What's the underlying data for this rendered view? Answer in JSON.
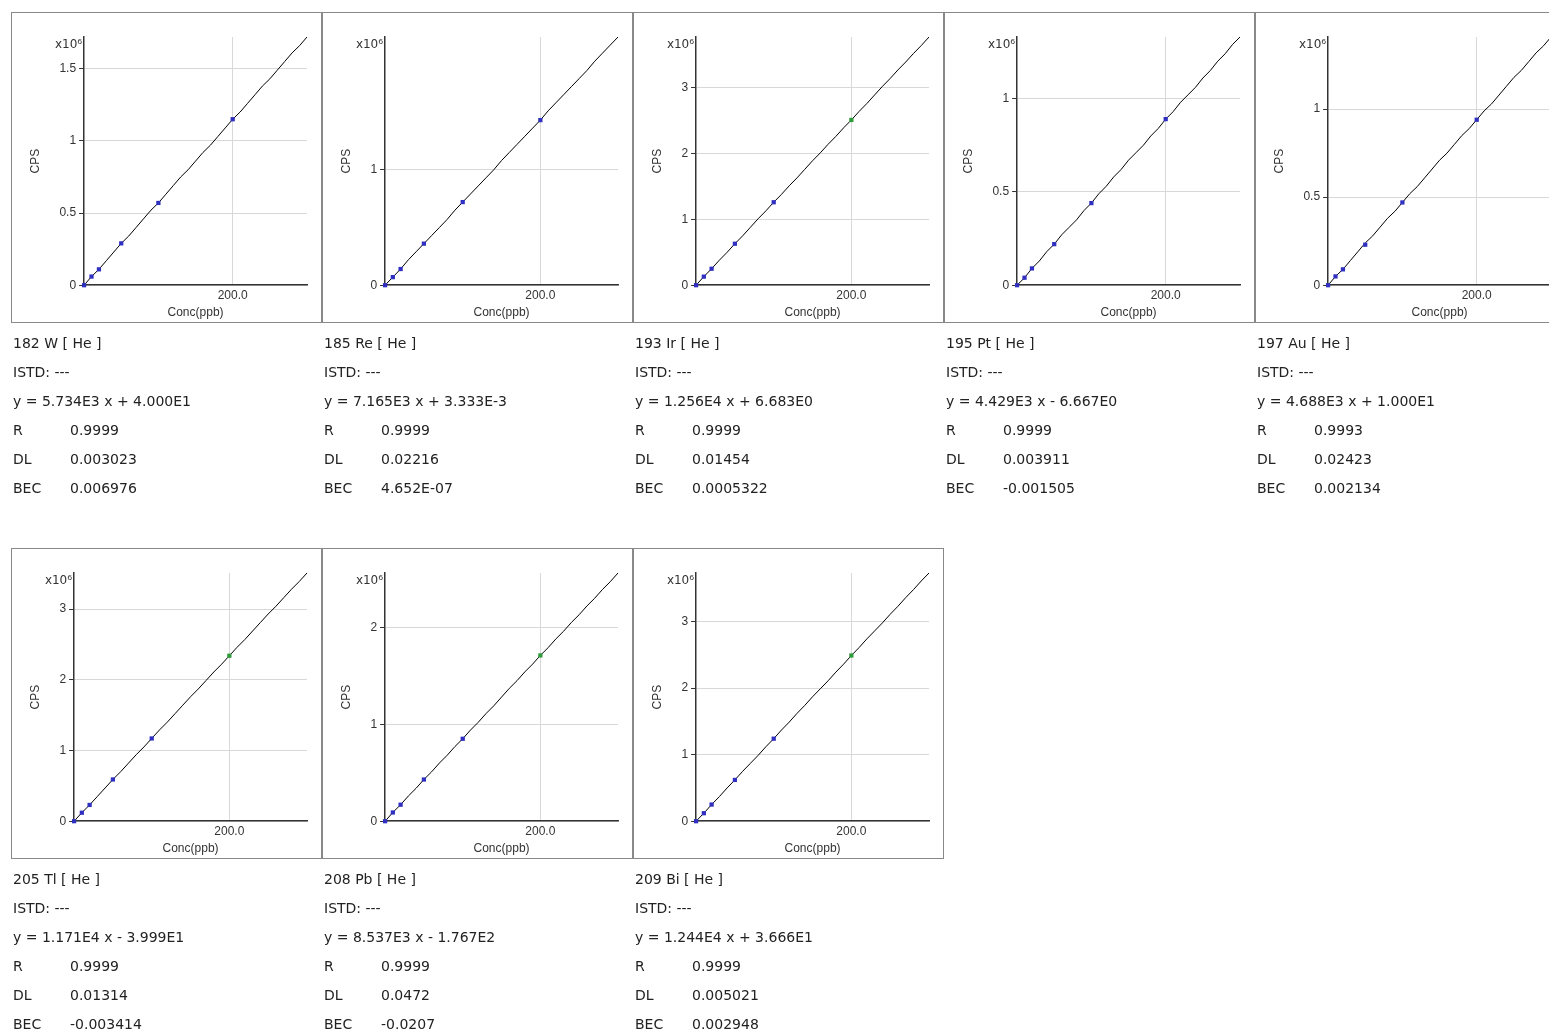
{
  "chart_data": [
    {
      "type": "scatter",
      "title": "182 W [ He ]",
      "xlabel": "Conc(ppb)",
      "ylabel": "CPS",
      "annotations": [
        "x10⁶",
        "ISTD: ---",
        "y = 5.734E3 x + 4.000E1",
        "R 0.9999",
        "DL 0.003023",
        "BEC 0.006976"
      ],
      "categories": [
        null,
        null,
        null,
        null,
        null,
        null,
        null,
        null,
        null,
        null,
        null,
        null,
        null,
        null,
        null,
        null,
        null,
        null,
        null,
        null,
        "200.0",
        null,
        null,
        null,
        null,
        null,
        null,
        null,
        null,
        null,
        null
      ],
      "ylim": [
        0,
        1.72
      ],
      "yticks": [
        0,
        0.5,
        1,
        1.5
      ],
      "grid": true,
      "marker": "square",
      "series": [
        {
          "values": [
            0,
            0.06,
            0.11,
            null,
            null,
            0.29,
            null,
            null,
            null,
            null,
            0.57,
            null,
            null,
            null,
            null,
            null,
            null,
            null,
            null,
            null,
            1.15,
            null,
            null,
            null,
            null,
            null,
            null,
            null,
            null,
            null,
            null
          ],
          "color": "#3030c0"
        },
        {
          "type": "line",
          "marker": "none",
          "values": [
            0,
            0.06,
            0.11,
            0.17,
            0.23,
            0.29,
            0.34,
            0.4,
            0.46,
            0.52,
            0.57,
            0.63,
            0.69,
            0.75,
            0.8,
            0.86,
            0.92,
            0.97,
            1.03,
            1.09,
            1.15,
            1.2,
            1.26,
            1.32,
            1.38,
            1.43,
            1.49,
            1.55,
            1.61,
            1.66,
            1.72
          ],
          "color": "#000000"
        }
      ]
    },
    {
      "type": "scatter",
      "title": "185 Re [ He ]",
      "xlabel": "Conc(ppb)",
      "ylabel": "CPS",
      "annotations": [
        "x10⁶",
        "ISTD: ---",
        "y = 7.165E3 x + 3.333E-3",
        "R 0.9999",
        "DL 0.02216",
        "BEC 4.652E-07"
      ],
      "categories": [
        null,
        null,
        null,
        null,
        null,
        null,
        null,
        null,
        null,
        null,
        null,
        null,
        null,
        null,
        null,
        null,
        null,
        null,
        null,
        null,
        "200.0",
        null,
        null,
        null,
        null,
        null,
        null,
        null,
        null,
        null,
        null
      ],
      "ylim": [
        0,
        2.15
      ],
      "yticks": [
        0,
        1
      ],
      "grid": true,
      "marker": "square",
      "series": [
        {
          "values": [
            0,
            0.07,
            0.14,
            null,
            null,
            0.36,
            null,
            null,
            null,
            null,
            0.72,
            null,
            null,
            null,
            null,
            null,
            null,
            null,
            null,
            null,
            1.43,
            null,
            null,
            null,
            null,
            null,
            null,
            null,
            null,
            null,
            null
          ],
          "color": "#3030c0"
        },
        {
          "type": "line",
          "marker": "none",
          "values": [
            0,
            0.07,
            0.14,
            0.22,
            0.29,
            0.36,
            0.43,
            0.5,
            0.57,
            0.65,
            0.72,
            0.79,
            0.86,
            0.93,
            1.0,
            1.08,
            1.15,
            1.22,
            1.29,
            1.36,
            1.43,
            1.51,
            1.58,
            1.65,
            1.72,
            1.79,
            1.86,
            1.94,
            2.01,
            2.08,
            2.15
          ],
          "color": "#000000"
        }
      ]
    },
    {
      "type": "scatter",
      "title": "193 Ir [ He ]",
      "xlabel": "Conc(ppb)",
      "ylabel": "CPS",
      "annotations": [
        "x10⁶",
        "ISTD: ---",
        "y = 1.256E4 x + 6.683E0",
        "R 0.9999",
        "DL 0.01454",
        "BEC 0.0005322"
      ],
      "categories": [
        null,
        null,
        null,
        null,
        null,
        null,
        null,
        null,
        null,
        null,
        null,
        null,
        null,
        null,
        null,
        null,
        null,
        null,
        null,
        null,
        "200.0",
        null,
        null,
        null,
        null,
        null,
        null,
        null,
        null,
        null,
        null
      ],
      "ylim": [
        0,
        3.77
      ],
      "yticks": [
        0,
        1,
        2,
        3
      ],
      "grid": true,
      "marker": "square",
      "series": [
        {
          "values": [
            0,
            0.13,
            0.25,
            null,
            null,
            0.63,
            null,
            null,
            null,
            null,
            1.26,
            null,
            null,
            null,
            null,
            null,
            null,
            null,
            null,
            null,
            2.51,
            null,
            null,
            null,
            null,
            null,
            null,
            null,
            null,
            null,
            null
          ],
          "color": "#3030c0",
          "colors": [
            "#3030c0",
            "#3030c0",
            "#3030c0",
            null,
            null,
            "#3030c0",
            null,
            null,
            null,
            null,
            "#3030c0",
            null,
            null,
            null,
            null,
            null,
            null,
            null,
            null,
            null,
            "#2e9a3a",
            null,
            null,
            null,
            null,
            null,
            null,
            null,
            null,
            null,
            null
          ]
        },
        {
          "type": "line",
          "marker": "none",
          "values": [
            0,
            0.13,
            0.25,
            0.38,
            0.5,
            0.63,
            0.75,
            0.88,
            1.01,
            1.13,
            1.26,
            1.38,
            1.51,
            1.63,
            1.76,
            1.89,
            2.01,
            2.14,
            2.26,
            2.39,
            2.51,
            2.64,
            2.76,
            2.89,
            3.02,
            3.14,
            3.27,
            3.39,
            3.52,
            3.64,
            3.77
          ],
          "color": "#000000"
        }
      ]
    },
    {
      "type": "scatter",
      "title": "195 Pt [ He ]",
      "xlabel": "Conc(ppb)",
      "ylabel": "CPS",
      "annotations": [
        "x10⁶",
        "ISTD: ---",
        "y = 4.429E3 x - 6.667E0",
        "R 0.9999",
        "DL 0.003911",
        "BEC -0.001505"
      ],
      "categories": [
        null,
        null,
        null,
        null,
        null,
        null,
        null,
        null,
        null,
        null,
        null,
        null,
        null,
        null,
        null,
        null,
        null,
        null,
        null,
        null,
        "200.0",
        null,
        null,
        null,
        null,
        null,
        null,
        null,
        null,
        null,
        null
      ],
      "ylim": [
        0,
        1.33
      ],
      "yticks": [
        0,
        0.5,
        1
      ],
      "grid": true,
      "marker": "square",
      "series": [
        {
          "values": [
            0,
            0.04,
            0.09,
            null,
            null,
            0.22,
            null,
            null,
            null,
            null,
            0.44,
            null,
            null,
            null,
            null,
            null,
            null,
            null,
            null,
            null,
            0.89,
            null,
            null,
            null,
            null,
            null,
            null,
            null,
            null,
            null,
            null
          ],
          "color": "#3030c0"
        },
        {
          "type": "line",
          "marker": "none",
          "values": [
            0,
            0.04,
            0.09,
            0.13,
            0.18,
            0.22,
            0.27,
            0.31,
            0.35,
            0.4,
            0.44,
            0.49,
            0.53,
            0.58,
            0.62,
            0.67,
            0.71,
            0.75,
            0.8,
            0.84,
            0.89,
            0.93,
            0.98,
            1.02,
            1.06,
            1.11,
            1.15,
            1.2,
            1.24,
            1.29,
            1.33
          ],
          "color": "#000000"
        }
      ]
    },
    {
      "type": "scatter",
      "title": "197 Au [ He ]",
      "xlabel": "Conc(ppb)",
      "ylabel": "CPS",
      "annotations": [
        "x10⁶",
        "ISTD: ---",
        "y = 4.688E3 x + 1.000E1",
        "R 0.9993",
        "DL 0.02423",
        "BEC 0.002134"
      ],
      "categories": [
        null,
        null,
        null,
        null,
        null,
        null,
        null,
        null,
        null,
        null,
        null,
        null,
        null,
        null,
        null,
        null,
        null,
        null,
        null,
        null,
        "200.0",
        null,
        null,
        null,
        null,
        null,
        null,
        null,
        null,
        null,
        null
      ],
      "ylim": [
        0,
        1.41
      ],
      "yticks": [
        0,
        0.5,
        1
      ],
      "grid": true,
      "marker": "square",
      "series": [
        {
          "values": [
            0,
            0.05,
            0.09,
            null,
            null,
            0.23,
            null,
            null,
            null,
            null,
            0.47,
            null,
            null,
            null,
            null,
            null,
            null,
            null,
            null,
            null,
            0.94,
            null,
            null,
            null,
            null,
            null,
            null,
            null,
            null,
            null,
            null
          ],
          "color": "#3030c0"
        },
        {
          "type": "line",
          "marker": "none",
          "values": [
            0,
            0.05,
            0.09,
            0.14,
            0.19,
            0.24,
            0.28,
            0.33,
            0.38,
            0.42,
            0.47,
            0.52,
            0.56,
            0.61,
            0.66,
            0.71,
            0.75,
            0.8,
            0.85,
            0.89,
            0.94,
            0.99,
            1.03,
            1.08,
            1.13,
            1.18,
            1.22,
            1.27,
            1.32,
            1.36,
            1.41
          ],
          "color": "#000000"
        }
      ]
    },
    {
      "type": "scatter",
      "title": "205 Tl [ He ]",
      "xlabel": "Conc(ppb)",
      "ylabel": "CPS",
      "annotations": [
        "x10⁶",
        "ISTD: ---",
        "y = 1.171E4 x - 3.999E1",
        "R 0.9999",
        "DL 0.01314",
        "BEC -0.003414"
      ],
      "categories": [
        null,
        null,
        null,
        null,
        null,
        null,
        null,
        null,
        null,
        null,
        null,
        null,
        null,
        null,
        null,
        null,
        null,
        null,
        null,
        null,
        "200.0",
        null,
        null,
        null,
        null,
        null,
        null,
        null,
        null,
        null,
        null
      ],
      "ylim": [
        0,
        3.51
      ],
      "yticks": [
        0,
        1,
        2,
        3
      ],
      "grid": true,
      "marker": "square",
      "series": [
        {
          "values": [
            0,
            0.12,
            0.23,
            null,
            null,
            0.59,
            null,
            null,
            null,
            null,
            1.17,
            null,
            null,
            null,
            null,
            null,
            null,
            null,
            null,
            null,
            2.34,
            null,
            null,
            null,
            null,
            null,
            null,
            null,
            null,
            null,
            null
          ],
          "color": "#3030c0",
          "colors": [
            "#3030c0",
            "#3030c0",
            "#3030c0",
            null,
            null,
            "#3030c0",
            null,
            null,
            null,
            null,
            "#3030c0",
            null,
            null,
            null,
            null,
            null,
            null,
            null,
            null,
            null,
            "#2e9a3a",
            null,
            null,
            null,
            null,
            null,
            null,
            null,
            null,
            null,
            null
          ]
        },
        {
          "type": "line",
          "marker": "none",
          "values": [
            0,
            0.12,
            0.23,
            0.35,
            0.47,
            0.59,
            0.7,
            0.82,
            0.94,
            1.05,
            1.17,
            1.29,
            1.4,
            1.52,
            1.64,
            1.76,
            1.87,
            1.99,
            2.11,
            2.22,
            2.34,
            2.46,
            2.57,
            2.69,
            2.81,
            2.93,
            3.04,
            3.16,
            3.28,
            3.39,
            3.51
          ],
          "color": "#000000"
        }
      ]
    },
    {
      "type": "scatter",
      "title": "208 Pb [ He ]",
      "xlabel": "Conc(ppb)",
      "ylabel": "CPS",
      "annotations": [
        "x10⁶",
        "ISTD: ---",
        "y = 8.537E3 x - 1.767E2",
        "R 0.9999",
        "DL 0.0472",
        "BEC -0.0207"
      ],
      "categories": [
        null,
        null,
        null,
        null,
        null,
        null,
        null,
        null,
        null,
        null,
        null,
        null,
        null,
        null,
        null,
        null,
        null,
        null,
        null,
        null,
        "200.0",
        null,
        null,
        null,
        null,
        null,
        null,
        null,
        null,
        null,
        null
      ],
      "ylim": [
        0,
        2.56
      ],
      "yticks": [
        0,
        1,
        2
      ],
      "grid": true,
      "marker": "square",
      "series": [
        {
          "values": [
            0,
            0.09,
            0.17,
            null,
            null,
            0.43,
            null,
            null,
            null,
            null,
            0.85,
            null,
            null,
            null,
            null,
            null,
            null,
            null,
            null,
            null,
            1.71,
            null,
            null,
            null,
            null,
            null,
            null,
            null,
            null,
            null,
            null
          ],
          "color": "#3030c0",
          "colors": [
            "#3030c0",
            "#3030c0",
            "#3030c0",
            null,
            null,
            "#3030c0",
            null,
            null,
            null,
            null,
            "#3030c0",
            null,
            null,
            null,
            null,
            null,
            null,
            null,
            null,
            null,
            "#2e9a3a",
            null,
            null,
            null,
            null,
            null,
            null,
            null,
            null,
            null,
            null
          ]
        },
        {
          "type": "line",
          "marker": "none",
          "values": [
            0,
            0.09,
            0.17,
            0.26,
            0.34,
            0.43,
            0.51,
            0.6,
            0.68,
            0.77,
            0.85,
            0.94,
            1.02,
            1.11,
            1.19,
            1.28,
            1.37,
            1.45,
            1.54,
            1.62,
            1.71,
            1.79,
            1.88,
            1.96,
            2.05,
            2.13,
            2.22,
            2.3,
            2.39,
            2.47,
            2.56
          ],
          "color": "#000000"
        }
      ]
    },
    {
      "type": "scatter",
      "title": "209 Bi [ He ]",
      "xlabel": "Conc(ppb)",
      "ylabel": "CPS",
      "annotations": [
        "x10⁶",
        "ISTD: ---",
        "y = 1.244E4 x + 3.666E1",
        "R 0.9999",
        "DL 0.005021",
        "BEC 0.002948"
      ],
      "categories": [
        null,
        null,
        null,
        null,
        null,
        null,
        null,
        null,
        null,
        null,
        null,
        null,
        null,
        null,
        null,
        null,
        null,
        null,
        null,
        null,
        "200.0",
        null,
        null,
        null,
        null,
        null,
        null,
        null,
        null,
        null,
        null
      ],
      "ylim": [
        0,
        3.73
      ],
      "yticks": [
        0,
        1,
        2,
        3
      ],
      "grid": true,
      "marker": "square",
      "series": [
        {
          "values": [
            0,
            0.12,
            0.25,
            null,
            null,
            0.62,
            null,
            null,
            null,
            null,
            1.24,
            null,
            null,
            null,
            null,
            null,
            null,
            null,
            null,
            null,
            2.49,
            null,
            null,
            null,
            null,
            null,
            null,
            null,
            null,
            null,
            null
          ],
          "color": "#3030c0",
          "colors": [
            "#3030c0",
            "#3030c0",
            "#3030c0",
            null,
            null,
            "#3030c0",
            null,
            null,
            null,
            null,
            "#3030c0",
            null,
            null,
            null,
            null,
            null,
            null,
            null,
            null,
            null,
            "#2e9a3a",
            null,
            null,
            null,
            null,
            null,
            null,
            null,
            null,
            null,
            null
          ]
        },
        {
          "type": "line",
          "marker": "none",
          "values": [
            0,
            0.12,
            0.25,
            0.37,
            0.5,
            0.62,
            0.75,
            0.87,
            0.99,
            1.12,
            1.24,
            1.37,
            1.49,
            1.62,
            1.74,
            1.87,
            1.99,
            2.11,
            2.24,
            2.36,
            2.49,
            2.61,
            2.74,
            2.86,
            2.98,
            3.11,
            3.23,
            3.36,
            3.48,
            3.61,
            3.73
          ],
          "color": "#000000"
        }
      ]
    }
  ]
}
